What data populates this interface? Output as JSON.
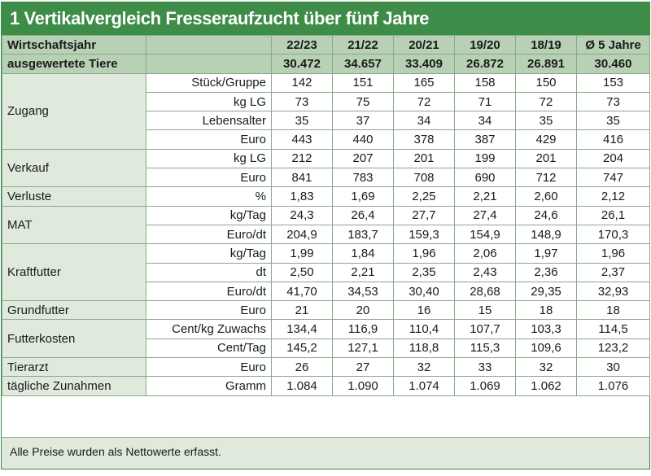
{
  "title": "1 Vertikalvergleich Fresseraufzucht über fünf Jahre",
  "header": {
    "label": "Wirtschaftsjahr",
    "years": [
      "22/23",
      "21/22",
      "20/21",
      "19/20",
      "18/19",
      "Ø 5 Jahre"
    ]
  },
  "animals": {
    "label": "ausgewertete Tiere",
    "values": [
      "30.472",
      "34.657",
      "33.409",
      "26.872",
      "26.891",
      "30.460"
    ]
  },
  "groups": [
    {
      "name": "Zugang",
      "rows": [
        {
          "unit": "Stück/Gruppe",
          "values": [
            "142",
            "151",
            "165",
            "158",
            "150",
            "153"
          ]
        },
        {
          "unit": "kg LG",
          "values": [
            "73",
            "75",
            "72",
            "71",
            "72",
            "73"
          ]
        },
        {
          "unit": "Lebensalter",
          "values": [
            "35",
            "37",
            "34",
            "34",
            "35",
            "35"
          ]
        },
        {
          "unit": "Euro",
          "values": [
            "443",
            "440",
            "378",
            "387",
            "429",
            "416"
          ]
        }
      ]
    },
    {
      "name": "Verkauf",
      "rows": [
        {
          "unit": "kg LG",
          "values": [
            "212",
            "207",
            "201",
            "199",
            "201",
            "204"
          ]
        },
        {
          "unit": "Euro",
          "values": [
            "841",
            "783",
            "708",
            "690",
            "712",
            "747"
          ]
        }
      ]
    },
    {
      "name": "Verluste",
      "rows": [
        {
          "unit": "%",
          "values": [
            "1,83",
            "1,69",
            "2,25",
            "2,21",
            "2,60",
            "2,12"
          ]
        }
      ]
    },
    {
      "name": "MAT",
      "rows": [
        {
          "unit": "kg/Tag",
          "values": [
            "24,3",
            "26,4",
            "27,7",
            "27,4",
            "24,6",
            "26,1"
          ]
        },
        {
          "unit": "Euro/dt",
          "values": [
            "204,9",
            "183,7",
            "159,3",
            "154,9",
            "148,9",
            "170,3"
          ]
        }
      ]
    },
    {
      "name": "Kraftfutter",
      "rows": [
        {
          "unit": "kg/Tag",
          "values": [
            "1,99",
            "1,84",
            "1,96",
            "2,06",
            "1,97",
            "1,96"
          ]
        },
        {
          "unit": "dt",
          "values": [
            "2,50",
            "2,21",
            "2,35",
            "2,43",
            "2,36",
            "2,37"
          ]
        },
        {
          "unit": "Euro/dt",
          "values": [
            "41,70",
            "34,53",
            "30,40",
            "28,68",
            "29,35",
            "32,93"
          ]
        }
      ]
    },
    {
      "name": "Grundfutter",
      "rows": [
        {
          "unit": "Euro",
          "values": [
            "21",
            "20",
            "16",
            "15",
            "18",
            "18"
          ]
        }
      ]
    },
    {
      "name": "Futterkosten",
      "rows": [
        {
          "unit": "Cent/kg Zuwachs",
          "values": [
            "134,4",
            "116,9",
            "110,4",
            "107,7",
            "103,3",
            "114,5"
          ]
        },
        {
          "unit": "Cent/Tag",
          "values": [
            "145,2",
            "127,1",
            "118,8",
            "115,3",
            "109,6",
            "123,2"
          ]
        }
      ]
    },
    {
      "name": "Tierarzt",
      "rows": [
        {
          "unit": "Euro",
          "values": [
            "26",
            "27",
            "32",
            "33",
            "32",
            "30"
          ]
        }
      ]
    },
    {
      "name": "tägliche Zunahmen",
      "rows": [
        {
          "unit": "Gramm",
          "values": [
            "1.084",
            "1.090",
            "1.074",
            "1.069",
            "1.062",
            "1.076"
          ]
        }
      ]
    }
  ],
  "footnote": "Alle Preise wurden als Nettowerte erfasst.",
  "colors": {
    "title_bg": "#3d8c48",
    "header_bg": "#b8d0b4",
    "label_bg": "#dfeadc",
    "cell_bg": "#ffffff",
    "border": "#8aa98a"
  }
}
